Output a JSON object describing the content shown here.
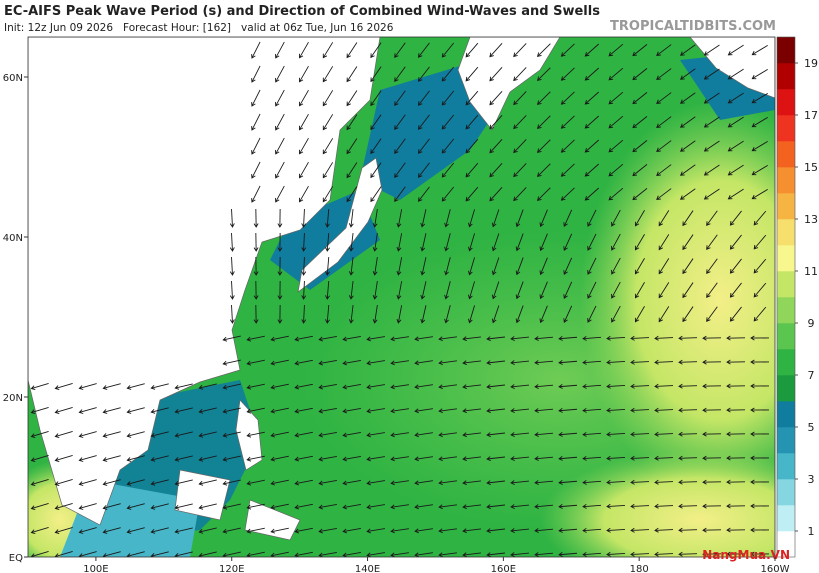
{
  "header": {
    "title": "EC-AIFS Peak Wave Period (s) and Direction of Combined Wind-Waves and Swells",
    "subtitle": "Init: 12z Jun 09 2026   Forecast Hour: [162]   valid at 06z Tue, Jun 16 2026",
    "site": "TROPICALTIDBITS.COM"
  },
  "map": {
    "lon_range": [
      90,
      200
    ],
    "lat_range": [
      0,
      65
    ],
    "lat_ticks": [
      {
        "value": 60,
        "label": "60N"
      },
      {
        "value": 40,
        "label": "40N"
      },
      {
        "value": 20,
        "label": "20N"
      },
      {
        "value": 0,
        "label": "EQ"
      }
    ],
    "lon_ticks": [
      {
        "value": 100,
        "label": "100E"
      },
      {
        "value": 120,
        "label": "120E"
      },
      {
        "value": 140,
        "label": "140E"
      },
      {
        "value": 160,
        "label": "160E"
      },
      {
        "value": 180,
        "label": "180"
      },
      {
        "value": 200,
        "label": "160W"
      }
    ]
  },
  "colorbar": {
    "colors": [
      "#ffffff",
      "#bfeff4",
      "#86d6e2",
      "#46b6c8",
      "#2494b2",
      "#107c9e",
      "#1c9a3e",
      "#2fb343",
      "#5ac64f",
      "#8fd65a",
      "#c4e666",
      "#f7f78e",
      "#f6df6c",
      "#f6b443",
      "#f58f2f",
      "#f46220",
      "#ee3420",
      "#dd1212",
      "#b00000",
      "#7a0000"
    ],
    "ticks": [
      1,
      3,
      5,
      7,
      9,
      11,
      13,
      15,
      17,
      19
    ]
  },
  "watermark": "NangMua.VN"
}
